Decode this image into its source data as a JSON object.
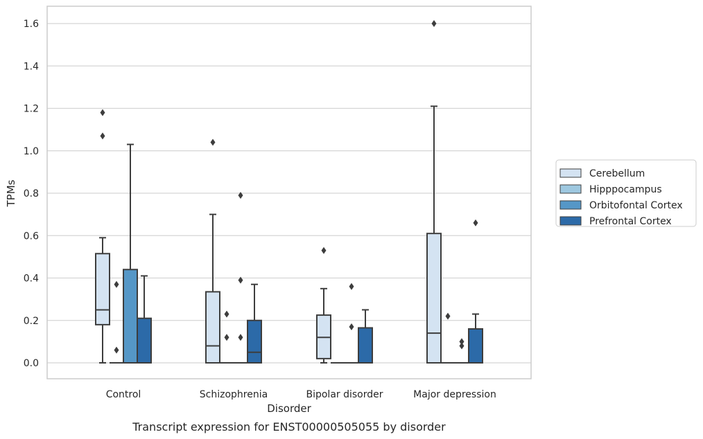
{
  "caption": "Transcript expression for ENST00000505055 by disorder",
  "chart_data": {
    "type": "boxplot",
    "xlabel": "Disorder",
    "ylabel": "TPMs",
    "ylim": [
      -0.08,
      1.68
    ],
    "yticks": [
      "0.0",
      "0.2",
      "0.4",
      "0.6",
      "0.8",
      "1.0",
      "1.2",
      "1.4",
      "1.6"
    ],
    "grid": "horizontal",
    "legend_position": "right",
    "categories": [
      "Control",
      "Schizophrenia",
      "Bipolar disorder",
      "Major depression"
    ],
    "series": [
      {
        "name": "Cerebellum",
        "color": "#d4e3f2",
        "boxes": [
          {
            "min": 0.0,
            "q1": 0.18,
            "median": 0.25,
            "q3": 0.515,
            "max": 0.59,
            "outliers": [
              1.07,
              1.18
            ]
          },
          {
            "min": 0.0,
            "q1": 0.0,
            "median": 0.08,
            "q3": 0.335,
            "max": 0.7,
            "outliers": [
              1.04
            ]
          },
          {
            "min": 0.0,
            "q1": 0.02,
            "median": 0.12,
            "q3": 0.225,
            "max": 0.35,
            "outliers": [
              0.53
            ]
          },
          {
            "min": 0.0,
            "q1": 0.0,
            "median": 0.14,
            "q3": 0.61,
            "max": 1.21,
            "outliers": [
              1.6
            ]
          }
        ]
      },
      {
        "name": "Hipppocampus",
        "color": "#9ec8e0",
        "boxes": [
          {
            "min": 0.0,
            "q1": 0.0,
            "median": 0.0,
            "q3": 0.0,
            "max": 0.0,
            "outliers": [
              0.06,
              0.37
            ]
          },
          {
            "min": 0.0,
            "q1": 0.0,
            "median": 0.0,
            "q3": 0.0,
            "max": 0.0,
            "outliers": [
              0.12,
              0.23
            ]
          },
          {
            "min": 0.0,
            "q1": 0.0,
            "median": 0.0,
            "q3": 0.0,
            "max": 0.0,
            "outliers": []
          },
          {
            "min": 0.0,
            "q1": 0.0,
            "median": 0.0,
            "q3": 0.0,
            "max": 0.0,
            "outliers": [
              0.22
            ]
          }
        ]
      },
      {
        "name": "Orbitofontal Cortex",
        "color": "#5597c7",
        "boxes": [
          {
            "min": 0.0,
            "q1": 0.0,
            "median": 0.0,
            "q3": 0.44,
            "max": 1.03,
            "outliers": []
          },
          {
            "min": 0.0,
            "q1": 0.0,
            "median": 0.0,
            "q3": 0.0,
            "max": 0.0,
            "outliers": [
              0.12,
              0.39,
              0.79
            ]
          },
          {
            "min": 0.0,
            "q1": 0.0,
            "median": 0.0,
            "q3": 0.0,
            "max": 0.0,
            "outliers": [
              0.17,
              0.36
            ]
          },
          {
            "min": 0.0,
            "q1": 0.0,
            "median": 0.0,
            "q3": 0.0,
            "max": 0.0,
            "outliers": [
              0.08,
              0.1
            ]
          }
        ]
      },
      {
        "name": "Prefrontal Cortex",
        "color": "#2c6aa8",
        "boxes": [
          {
            "min": 0.0,
            "q1": 0.0,
            "median": 0.0,
            "q3": 0.21,
            "max": 0.41,
            "outliers": []
          },
          {
            "min": 0.0,
            "q1": 0.0,
            "median": 0.05,
            "q3": 0.2,
            "max": 0.37,
            "outliers": []
          },
          {
            "min": 0.0,
            "q1": 0.0,
            "median": 0.0,
            "q3": 0.165,
            "max": 0.25,
            "outliers": []
          },
          {
            "min": 0.0,
            "q1": 0.0,
            "median": 0.0,
            "q3": 0.16,
            "max": 0.23,
            "outliers": [
              0.66
            ]
          }
        ]
      }
    ]
  }
}
